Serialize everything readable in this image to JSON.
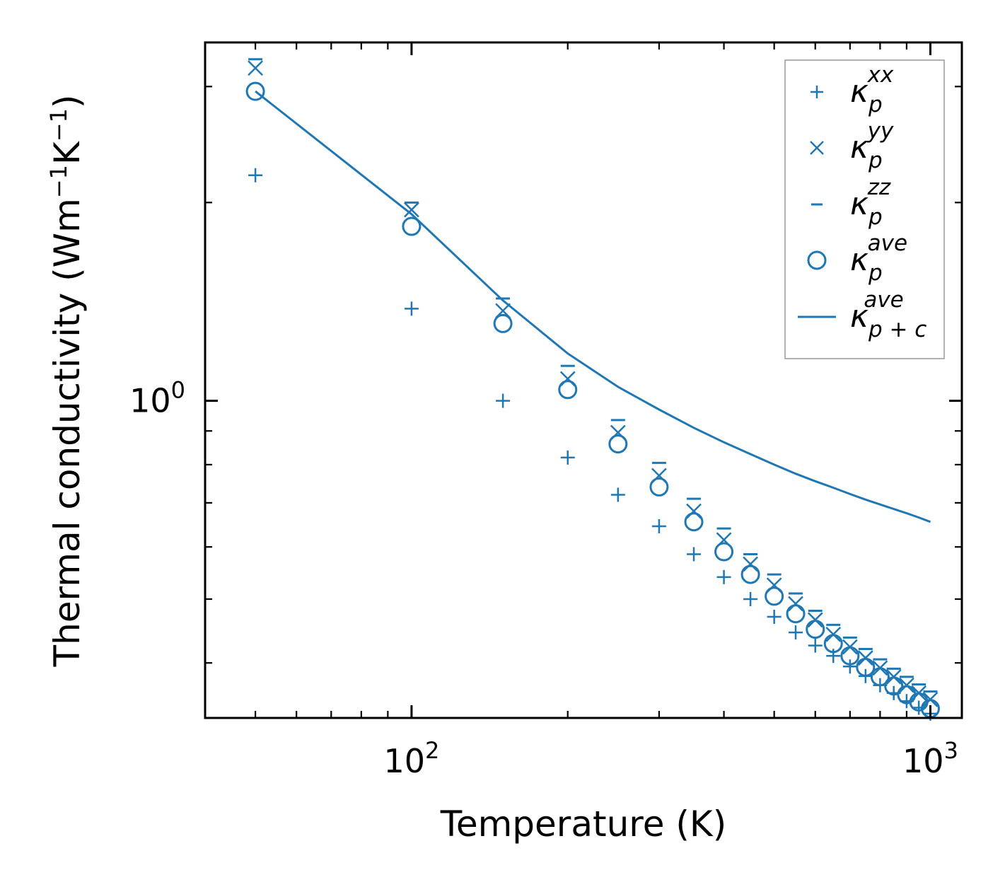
{
  "chart_data": {
    "type": "scatter",
    "xscale": "log",
    "yscale": "log",
    "xlim": [
      40,
      1150
    ],
    "ylim": [
      0.33,
      3.5
    ],
    "xlabel": "Temperature (K)",
    "ylabel": {
      "prefix": "Thermal conductivity (Wm",
      "sup1": "−1",
      "mid": "K",
      "sup2": "−1",
      "suffix": ")"
    },
    "x_ticks": [
      {
        "value": 100,
        "base": "10",
        "exp": "2"
      },
      {
        "value": 1000,
        "base": "10",
        "exp": "3"
      }
    ],
    "y_ticks": [
      {
        "value": 1,
        "base": "10",
        "exp": "0"
      }
    ],
    "x": [
      50,
      100,
      150,
      200,
      250,
      300,
      350,
      400,
      450,
      500,
      550,
      600,
      650,
      700,
      750,
      800,
      850,
      900,
      950,
      1000
    ],
    "series": [
      {
        "name": "kappa_p_xx",
        "label_main": "κ",
        "label_sub": "p",
        "label_sup": "xx",
        "marker": "plus",
        "values": [
          2.2,
          1.38,
          1.0,
          0.82,
          0.72,
          0.645,
          0.585,
          0.54,
          0.5,
          0.47,
          0.445,
          0.425,
          0.41,
          0.395,
          0.382,
          0.37,
          0.36,
          0.35,
          0.342,
          0.335
        ]
      },
      {
        "name": "kappa_p_yy",
        "label_main": "κ",
        "label_sub": "p",
        "label_sup": "yy",
        "marker": "x",
        "values": [
          3.2,
          1.95,
          1.37,
          1.08,
          0.895,
          0.77,
          0.68,
          0.615,
          0.565,
          0.525,
          0.492,
          0.465,
          0.442,
          0.423,
          0.407,
          0.393,
          0.381,
          0.37,
          0.36,
          0.352
        ]
      },
      {
        "name": "kappa_p_zz",
        "label_main": "κ",
        "label_sub": "p",
        "label_sup": "zz",
        "marker": "hline",
        "values": [
          3.3,
          2.0,
          1.43,
          1.13,
          0.935,
          0.805,
          0.71,
          0.64,
          0.585,
          0.545,
          0.51,
          0.48,
          0.457,
          0.437,
          0.42,
          0.405,
          0.392,
          0.381,
          0.371,
          0.362
        ]
      },
      {
        "name": "kappa_p_ave",
        "label_main": "κ",
        "label_sub": "p",
        "label_sup": "ave",
        "marker": "circle",
        "values": [
          2.95,
          1.84,
          1.31,
          1.04,
          0.86,
          0.74,
          0.655,
          0.59,
          0.545,
          0.505,
          0.475,
          0.45,
          0.428,
          0.41,
          0.394,
          0.381,
          0.369,
          0.358,
          0.349,
          0.341
        ]
      },
      {
        "name": "kappa_pc_ave",
        "label_main": "κ",
        "label_sub": "p + c",
        "label_sup": "ave",
        "marker": "line",
        "values": [
          2.95,
          1.92,
          1.42,
          1.18,
          1.05,
          0.97,
          0.91,
          0.865,
          0.83,
          0.8,
          0.775,
          0.755,
          0.738,
          0.722,
          0.708,
          0.696,
          0.685,
          0.675,
          0.665,
          0.655
        ]
      }
    ],
    "legend_position": "top-right",
    "color": "#1f77b4"
  }
}
